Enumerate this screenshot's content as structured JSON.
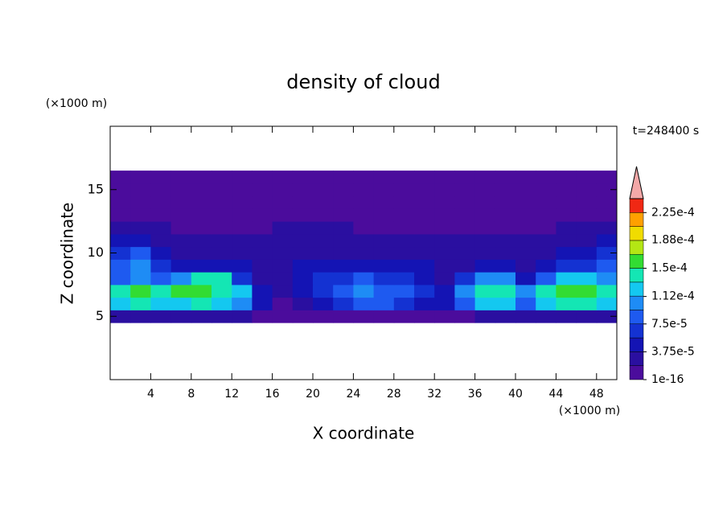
{
  "chart_data": {
    "type": "contour",
    "title": "density of cloud",
    "xlabel": "X coordinate",
    "ylabel": "Z coordinate",
    "x_unit": "(×1000 m)",
    "y_unit": "(×1000 m)",
    "annotation": "t=248400 s",
    "xlim": [
      0,
      50
    ],
    "xticks": [
      4,
      8,
      12,
      16,
      20,
      24,
      28,
      32,
      36,
      40,
      44,
      48
    ],
    "ylim": [
      0,
      20
    ],
    "yticks": [
      5,
      10,
      15
    ],
    "x": [
      1,
      3,
      5,
      7,
      9,
      11,
      13,
      15,
      17,
      19,
      21,
      23,
      25,
      27,
      29,
      31,
      33,
      35,
      37,
      39,
      41,
      43,
      45,
      47,
      49
    ],
    "z": [
      5,
      6,
      7,
      8,
      9,
      10,
      11,
      12,
      13,
      14,
      15,
      16
    ],
    "values": [
      [
        2e-05,
        2e-05,
        2e-05,
        2e-05,
        2e-05,
        2e-05,
        2e-05,
        1e-16,
        1e-16,
        1e-16,
        1e-16,
        1e-16,
        1e-16,
        1e-16,
        1e-16,
        1e-16,
        1e-16,
        1e-16,
        2e-05,
        2e-05,
        2e-05,
        2e-05,
        2e-05,
        2e-05,
        2e-05
      ],
      [
        0.00012,
        0.00014,
        0.00012,
        0.00012,
        0.00014,
        0.00012,
        0.0001,
        4e-05,
        1e-16,
        2e-05,
        4e-05,
        6e-05,
        8e-05,
        8e-05,
        6e-05,
        4e-05,
        4e-05,
        8e-05,
        0.00012,
        0.00012,
        8e-05,
        0.00012,
        0.00014,
        0.00014,
        0.00012
      ],
      [
        0.00014,
        0.00016,
        0.00014,
        0.00016,
        0.00016,
        0.00014,
        0.00012,
        4e-05,
        2e-05,
        4e-05,
        6e-05,
        8e-05,
        0.0001,
        8e-05,
        8e-05,
        6e-05,
        4e-05,
        0.0001,
        0.00014,
        0.00014,
        0.0001,
        0.00014,
        0.00016,
        0.00016,
        0.00014
      ],
      [
        8e-05,
        0.0001,
        8e-05,
        0.0001,
        0.00014,
        0.00014,
        6e-05,
        2e-05,
        2e-05,
        4e-05,
        6e-05,
        6e-05,
        8e-05,
        6e-05,
        6e-05,
        4e-05,
        2e-05,
        6e-05,
        0.0001,
        0.0001,
        4e-05,
        8e-05,
        0.00012,
        0.00012,
        0.0001
      ],
      [
        8e-05,
        0.0001,
        6e-05,
        4e-05,
        4e-05,
        4e-05,
        4e-05,
        2e-05,
        2e-05,
        4e-05,
        4e-05,
        4e-05,
        4e-05,
        4e-05,
        4e-05,
        4e-05,
        2e-05,
        2e-05,
        4e-05,
        4e-05,
        2e-05,
        4e-05,
        6e-05,
        6e-05,
        8e-05
      ],
      [
        6e-05,
        8e-05,
        4e-05,
        2e-05,
        2e-05,
        2e-05,
        2e-05,
        2e-05,
        2e-05,
        2e-05,
        2e-05,
        2e-05,
        2e-05,
        2e-05,
        2e-05,
        2e-05,
        2e-05,
        2e-05,
        2e-05,
        2e-05,
        2e-05,
        2e-05,
        4e-05,
        4e-05,
        6e-05
      ],
      [
        4e-05,
        4e-05,
        2e-05,
        2e-05,
        2e-05,
        2e-05,
        2e-05,
        2e-05,
        2e-05,
        2e-05,
        2e-05,
        2e-05,
        2e-05,
        2e-05,
        2e-05,
        2e-05,
        2e-05,
        2e-05,
        2e-05,
        2e-05,
        2e-05,
        2e-05,
        2e-05,
        2e-05,
        4e-05
      ],
      [
        2e-05,
        2e-05,
        2e-05,
        1e-16,
        1e-16,
        1e-16,
        1e-16,
        1e-16,
        2e-05,
        2e-05,
        2e-05,
        2e-05,
        1e-16,
        1e-16,
        1e-16,
        1e-16,
        1e-16,
        1e-16,
        1e-16,
        1e-16,
        1e-16,
        1e-16,
        2e-05,
        2e-05,
        2e-05
      ],
      [
        1e-16,
        1e-16,
        1e-16,
        1e-16,
        1e-16,
        1e-16,
        1e-16,
        1e-16,
        1e-16,
        1e-16,
        1e-16,
        1e-16,
        1e-16,
        1e-16,
        1e-16,
        1e-16,
        1e-16,
        1e-16,
        1e-16,
        1e-16,
        1e-16,
        1e-16,
        1e-16,
        1e-16,
        1e-16
      ],
      [
        1e-16,
        1e-16,
        1e-16,
        1e-16,
        1e-16,
        1e-16,
        1e-16,
        1e-16,
        1e-16,
        1e-16,
        1e-16,
        1e-16,
        1e-16,
        1e-16,
        1e-16,
        1e-16,
        1e-16,
        1e-16,
        1e-16,
        1e-16,
        1e-16,
        1e-16,
        1e-16,
        1e-16,
        1e-16
      ],
      [
        1e-16,
        1e-16,
        1e-16,
        1e-16,
        1e-16,
        1e-16,
        1e-16,
        1e-16,
        1e-16,
        1e-16,
        1e-16,
        1e-16,
        1e-16,
        1e-16,
        1e-16,
        1e-16,
        1e-16,
        1e-16,
        1e-16,
        1e-16,
        1e-16,
        1e-16,
        1e-16,
        1e-16,
        1e-16
      ],
      [
        1e-16,
        1e-16,
        1e-16,
        1e-16,
        1e-16,
        1e-16,
        1e-16,
        1e-16,
        1e-16,
        1e-16,
        1e-16,
        1e-16,
        1e-16,
        1e-16,
        1e-16,
        1e-16,
        1e-16,
        1e-16,
        1e-16,
        1e-16,
        1e-16,
        1e-16,
        1e-16,
        1e-16,
        1e-16
      ]
    ],
    "colorbar": {
      "levels": [
        1e-16,
        1.875e-05,
        3.75e-05,
        5.625e-05,
        7.5e-05,
        9.375e-05,
        0.0001125,
        0.00013125,
        0.00015,
        0.00016875,
        0.0001875,
        0.00020625,
        0.000225
      ],
      "colors": [
        "#4b0c9c",
        "#2a0fa0",
        "#1414b4",
        "#1432d2",
        "#1e5af0",
        "#1e8cf5",
        "#14c8f0",
        "#14e6b4",
        "#32dc32",
        "#b4e614",
        "#f0dc00",
        "#ffa000",
        "#f02814"
      ],
      "extend_color": "#f4a8a8",
      "ticks": [
        {
          "value": 1e-16,
          "label": "1e-16"
        },
        {
          "value": 3.75e-05,
          "label": "3.75e-5"
        },
        {
          "value": 7.5e-05,
          "label": "7.5e-5"
        },
        {
          "value": 0.000112,
          "label": "1.12e-4"
        },
        {
          "value": 0.00015,
          "label": "1.5e-4"
        },
        {
          "value": 0.000188,
          "label": "1.88e-4"
        },
        {
          "value": 0.000225,
          "label": "2.25e-4"
        }
      ]
    }
  }
}
